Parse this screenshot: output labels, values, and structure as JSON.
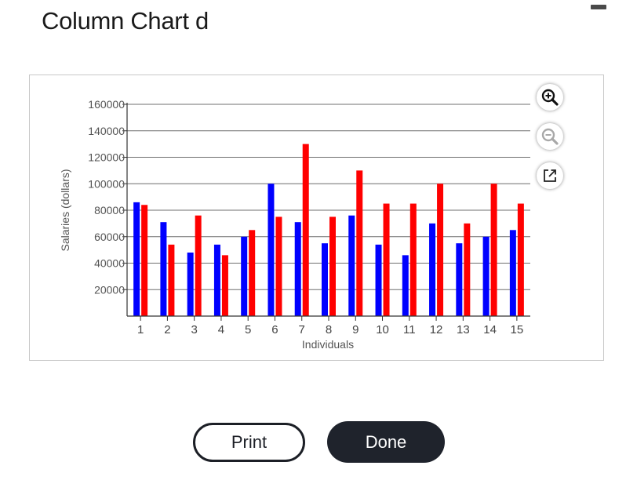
{
  "window": {
    "title": "Column Chart d",
    "minimize_icon": "minimize-icon"
  },
  "toolbar": {
    "zoom_in_icon": "zoom-in-icon",
    "zoom_out_icon": "zoom-out-icon",
    "popout_icon": "external-link-icon"
  },
  "buttons": {
    "print_label": "Print",
    "done_label": "Done"
  },
  "colors": {
    "series1": "#0000ff",
    "series2": "#ff0000",
    "done_bg": "#1f232c"
  },
  "chart_data": {
    "type": "bar",
    "title": "",
    "xlabel": "Individuals",
    "ylabel": "Salaries (dollars)",
    "categories": [
      "1",
      "2",
      "3",
      "4",
      "5",
      "6",
      "7",
      "8",
      "9",
      "10",
      "11",
      "12",
      "13",
      "14",
      "15"
    ],
    "yticks": [
      "20000",
      "40000",
      "60000",
      "80000",
      "100000",
      "120000",
      "140000",
      "160000"
    ],
    "ylim": [
      0,
      160000
    ],
    "grid": true,
    "legend": "none",
    "series": [
      {
        "values": [
          86000,
          71000,
          48000,
          54000,
          60000,
          100000,
          71000,
          55000,
          76000,
          54000,
          46000,
          70000,
          55000,
          60000,
          65000
        ]
      },
      {
        "values": [
          84000,
          54000,
          76000,
          46000,
          65000,
          75000,
          130000,
          75000,
          110000,
          85000,
          85000,
          100000,
          70000,
          100000,
          85000
        ]
      }
    ]
  }
}
